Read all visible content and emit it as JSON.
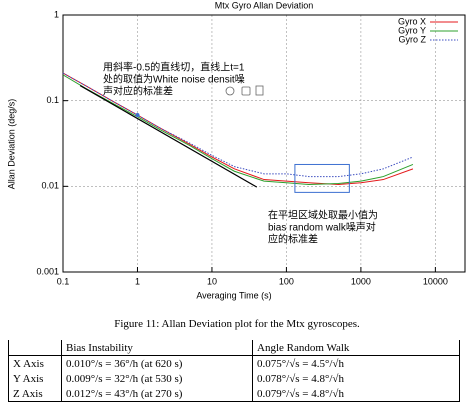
{
  "chart_data": {
    "type": "line",
    "title": "Mtx Gyro Allan Deviation",
    "x_label": "Averaging Time (s)",
    "y_label": "Allan Deviation (deg/s)",
    "log_x": true,
    "log_y": true,
    "grid": true,
    "legend": "top-right",
    "x": [
      0.1,
      0.2,
      0.5,
      1,
      2,
      5,
      10,
      20,
      50,
      100,
      200,
      500,
      1000,
      2000,
      5000
    ],
    "series": [
      {
        "name": "Gyro X",
        "color": "#e41a1c",
        "dashed": false,
        "values": [
          0.21,
          0.15,
          0.095,
          0.068,
          0.048,
          0.031,
          0.022,
          0.016,
          0.012,
          0.0115,
          0.011,
          0.0105,
          0.011,
          0.012,
          0.016
        ]
      },
      {
        "name": "Gyro Y",
        "color": "#2ca02c",
        "dashed": false,
        "values": [
          0.2,
          0.14,
          0.09,
          0.065,
          0.046,
          0.03,
          0.021,
          0.015,
          0.0115,
          0.011,
          0.0105,
          0.0108,
          0.0115,
          0.013,
          0.018
        ]
      },
      {
        "name": "Gyro Z",
        "color": "#3b4cc0",
        "dashed": true,
        "values": [
          0.21,
          0.15,
          0.095,
          0.068,
          0.048,
          0.032,
          0.023,
          0.017,
          0.014,
          0.014,
          0.013,
          0.013,
          0.014,
          0.016,
          0.022
        ]
      }
    ],
    "reference_line": {
      "x": [
        0.17,
        40
      ],
      "values": [
        0.15,
        0.0098
      ],
      "color": "#000000"
    },
    "reference_point": {
      "x": 1,
      "value": 0.068,
      "color": "#3b6fd0"
    },
    "highlight_box": {
      "x": [
        130,
        700
      ],
      "values": [
        0.0085,
        0.018
      ],
      "color": "#3b6fd0"
    },
    "annotations": [
      {
        "lines": [
          "用斜率-0.5的直线切，直线上t=1",
          "处的取值为White noise densit噪",
          "声对应的标准差"
        ]
      },
      {
        "lines": [
          "在平坦区域处取最小值为",
          "bias random walk噪声对",
          "应的标准差"
        ]
      }
    ],
    "xlim": [
      0.1,
      25000
    ],
    "ylim": [
      0.001,
      1
    ],
    "xticks": [
      0.1,
      1,
      10,
      100,
      1000,
      10000
    ],
    "yticks": [
      0.001,
      0.01,
      0.1,
      1
    ]
  },
  "caption": "Figure 11: Allan Deviation plot for the Mtx gyroscopes.",
  "table": {
    "header": [
      "",
      "Bias Instability",
      "Angle Random Walk"
    ],
    "rows": [
      [
        "X Axis",
        "0.010°/s = 36°/h (at 620 s)",
        "0.075°/√s = 4.5°/√h"
      ],
      [
        "Y Axis",
        "0.009°/s = 32°/h (at 530 s)",
        "0.078°/√s = 4.8°/√h"
      ],
      [
        "Z Axis",
        "0.012°/s = 43°/h (at 270 s)",
        "0.079°/√s = 4.8°/√h"
      ]
    ]
  }
}
